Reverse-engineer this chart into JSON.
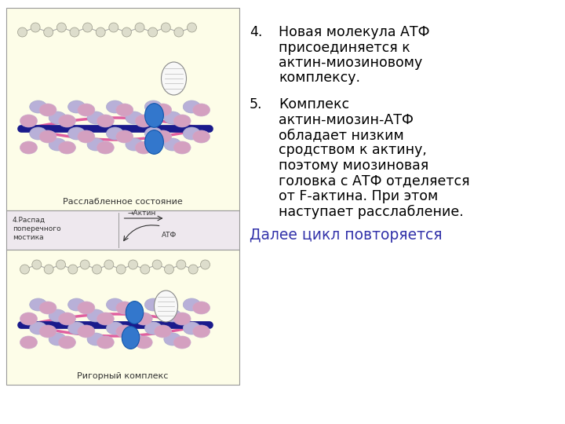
{
  "background_color": "#ffffff",
  "upper_panel_bg": "#fdfde8",
  "middle_panel_bg": "#eee8ee",
  "lower_panel_bg": "#fdfde8",
  "panel_border_color": "#999999",
  "item4_number": "4.",
  "item4_lines": [
    "Новая молекула АТФ",
    "присоединяется к",
    "актин-миозиновому",
    "комплексу."
  ],
  "item5_number": "5.",
  "item5_lines": [
    "Комплекс",
    "актин-миозин-АТФ",
    "обладает низким",
    "сродством к актину,",
    "поэтому миозиновая",
    "головка с АТФ отделяется",
    "от F-актина. При этом",
    "наступает расслабление."
  ],
  "footer_text": "Далее цикл повторяется",
  "footer_color": "#3333aa",
  "label_relaxed": "Расслабленное состояние",
  "label_bridge": "4.Распад\nпоперечного\nмостика",
  "label_actin_arrow": "Актин",
  "label_atf": "АТФ",
  "label_rigor": "Ригорный комплекс",
  "text_color": "#000000",
  "text_fontsize": 12.5,
  "label_fontsize": 8.0
}
